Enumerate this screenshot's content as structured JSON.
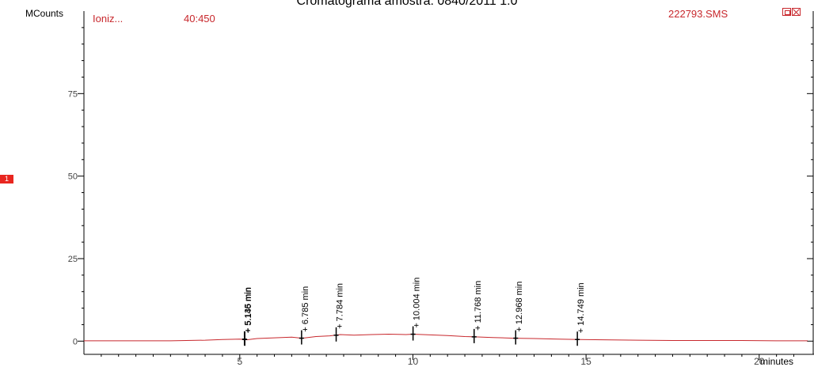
{
  "header": {
    "title": "Cromatograma amostra: 0840/2011 1:0",
    "trace_name": "Ioniz...",
    "mass_range": "40:450",
    "file_name": "222793.SMS",
    "trace_marker": "1"
  },
  "colors": {
    "trace": "#c8282d",
    "marker": "#e8261f",
    "axis": "#000000"
  },
  "chart_data": {
    "type": "line",
    "title": "Cromatograma amostra: 0840/2011 1:0",
    "xlabel": "minutes",
    "ylabel": "MCounts",
    "xlim": [
      0.5,
      21.4
    ],
    "ylim": [
      -4,
      100
    ],
    "x_ticks": [
      5,
      10,
      15,
      20
    ],
    "y_ticks": [
      0,
      25,
      50,
      75
    ],
    "grid": false,
    "series": [
      {
        "x": [
          0.5,
          3.0,
          4.0,
          4.5,
          5.0,
          5.2,
          5.5,
          6.0,
          6.5,
          6.8,
          7.2,
          7.6,
          7.9,
          8.3,
          8.8,
          9.3,
          9.8,
          10.0,
          10.5,
          11.0,
          11.5,
          11.8,
          12.3,
          12.9,
          13.5,
          14.2,
          14.8,
          15.5,
          16.5,
          17.5,
          18.5,
          19.5,
          20.5,
          21.4
        ],
        "y": [
          0.1,
          0.1,
          0.3,
          0.5,
          0.6,
          0.4,
          0.8,
          1.0,
          1.2,
          0.9,
          1.4,
          1.6,
          2.0,
          1.8,
          2.0,
          2.1,
          2.0,
          2.1,
          1.9,
          1.7,
          1.4,
          1.3,
          1.1,
          0.9,
          0.8,
          0.6,
          0.5,
          0.4,
          0.3,
          0.2,
          0.2,
          0.2,
          0.1,
          0.1
        ]
      }
    ],
    "peaks": [
      {
        "time": 5.135,
        "label": "5.135 min",
        "height": 0.6
      },
      {
        "time": 5.146,
        "label": "5.146 min",
        "height": 0.5
      },
      {
        "time": 6.785,
        "label": "6.785 min",
        "height": 0.9
      },
      {
        "time": 7.784,
        "label": "7.784 min",
        "height": 1.8
      },
      {
        "time": 10.004,
        "label": "10.004 min",
        "height": 2.1
      },
      {
        "time": 11.768,
        "label": "11.768 min",
        "height": 1.3
      },
      {
        "time": 12.968,
        "label": "12.968 min",
        "height": 0.9
      },
      {
        "time": 14.749,
        "label": "14.749 min",
        "height": 0.5
      }
    ]
  }
}
